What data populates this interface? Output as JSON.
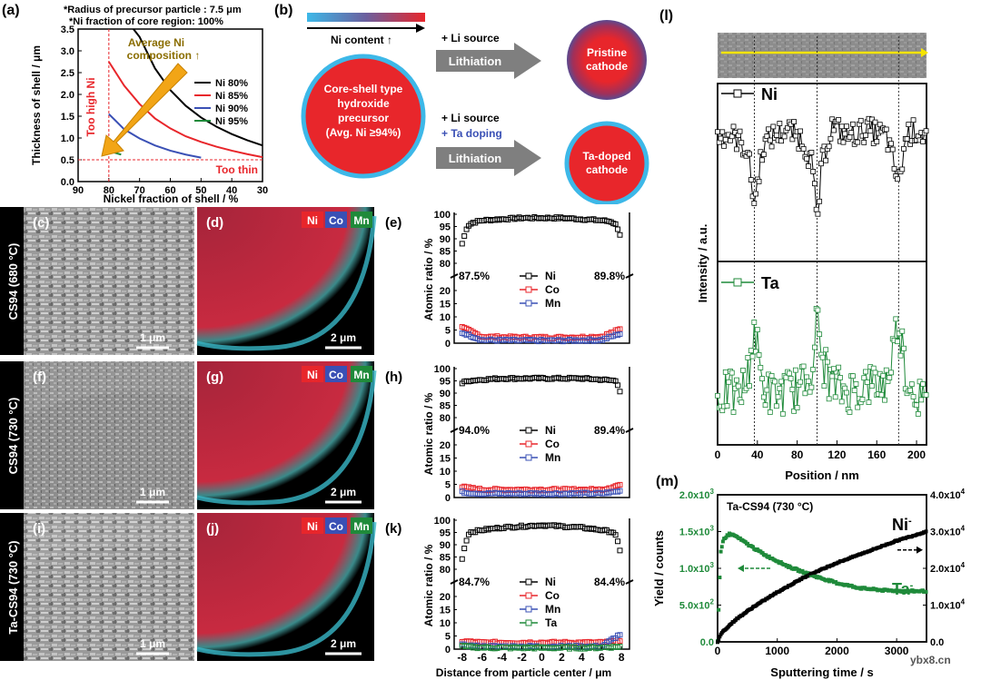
{
  "panel_labels": {
    "a": "(a)",
    "b": "(b)",
    "c": "(c)",
    "d": "(d)",
    "e": "(e)",
    "f": "(f)",
    "g": "(g)",
    "h": "(h)",
    "i": "(i)",
    "j": "(j)",
    "k": "(k)",
    "l": "(l)",
    "m": "(m)"
  },
  "colors": {
    "ni": "#000000",
    "co": "#e8262b",
    "mn": "#3a50b5",
    "ta": "#1f8a3a",
    "accent_red": "#e8262b",
    "blue_text": "#3a50b5",
    "arrow_gold": "#f2a516",
    "gray_arrow": "#7f7f7f",
    "cyan_ring": "#3db8e8"
  },
  "panel_a": {
    "note1": "*Radius of precursor particle : 7.5 μm",
    "note2": "*Ni fraction of core region: 100%",
    "too_high": "Too high Ni",
    "too_thin": "Too thin",
    "avg_line1": "Average Ni",
    "avg_line2": "composition ↑",
    "chart_data": {
      "type": "line",
      "xlabel": "Nickel fraction of shell / %",
      "ylabel": "Thickness of shell / μm",
      "xlim": [
        90,
        30
      ],
      "ylim": [
        0,
        3.5
      ],
      "xticks": [
        90,
        80,
        70,
        60,
        50,
        40,
        30
      ],
      "yticks": [
        0.0,
        0.5,
        1.0,
        1.5,
        2.0,
        2.5,
        3.0,
        3.5
      ],
      "series": [
        {
          "name": "Ni 80%",
          "x": [
            72,
            70,
            65,
            60,
            55,
            50,
            45,
            40,
            35,
            30
          ],
          "y": [
            3.6,
            3.32,
            2.6,
            2.1,
            1.74,
            1.47,
            1.26,
            1.09,
            0.95,
            0.83
          ]
        },
        {
          "name": "Ni 85%",
          "x": [
            80,
            75,
            70,
            65,
            60,
            55,
            50,
            45,
            40,
            35,
            30
          ],
          "y": [
            2.75,
            2.2,
            1.78,
            1.45,
            1.22,
            1.04,
            0.91,
            0.8,
            0.71,
            0.63,
            0.56
          ]
        },
        {
          "name": "Ni 90%",
          "x": [
            80,
            75,
            70,
            65,
            60,
            55,
            50
          ],
          "y": [
            1.55,
            1.2,
            0.99,
            0.83,
            0.71,
            0.62,
            0.55
          ]
        },
        {
          "name": "Ni 95%",
          "x": [
            80,
            78,
            76
          ],
          "y": [
            0.7,
            0.66,
            0.62
          ]
        }
      ],
      "threshold_x": 80,
      "threshold_y": 0.5
    }
  },
  "panel_b": {
    "ni_content": "Ni content ↑",
    "li_source": "+ Li source",
    "ta_doping": "+ Ta doping",
    "lithiation": "Lithiation",
    "precursor": [
      "Core-shell  type",
      "hydroxide",
      "precursor",
      "(Avg. Ni ≥94%)"
    ],
    "pristine": [
      "Pristine",
      "cathode"
    ],
    "ta_doped": [
      "Ta-doped",
      "cathode"
    ]
  },
  "rows": [
    {
      "label": "CS94 (680 °C)",
      "sem_scale": "1 μm",
      "eds_scale": "2 μm"
    },
    {
      "label": "CS94 (730 °C)",
      "sem_scale": "1 μm",
      "eds_scale": "2 μm"
    },
    {
      "label": "Ta-CS94 (730 °C)",
      "sem_scale": "1 μm",
      "eds_scale": "2 μm"
    }
  ],
  "eds_legend": {
    "ni": "Ni",
    "co": "Co",
    "mn": "Mn"
  },
  "profiles": {
    "ylabel": "Atomic ratio / %",
    "xlabel": "Distance from particle center / μm",
    "xticks": [
      -8,
      -6,
      -4,
      -2,
      0,
      2,
      4,
      6,
      8
    ],
    "yticks_upper": [
      80,
      85,
      90,
      95,
      100
    ],
    "yticks_lower": [
      0,
      5,
      10,
      15,
      20
    ],
    "chart_data": [
      {
        "type": "scatter",
        "panel": "e",
        "left_pct": "87.5%",
        "right_pct": "89.8%",
        "legend": [
          "Ni",
          "Co",
          "Mn"
        ],
        "ni": {
          "x": [
            -8,
            -7.5,
            -7,
            -6,
            -4,
            -2,
            0,
            2,
            4,
            6,
            7,
            7.5,
            8
          ],
          "y": [
            88,
            95,
            96.5,
            97.5,
            98,
            98.5,
            98.5,
            98.5,
            98,
            97.5,
            97,
            95.5,
            90
          ]
        },
        "co": {
          "x": [
            -8,
            -6,
            -4,
            -2,
            0,
            2,
            4,
            6,
            8
          ],
          "y": [
            6,
            2.5,
            2.3,
            2.2,
            2.2,
            2.2,
            2.3,
            2.5,
            5.5
          ]
        },
        "mn": {
          "x": [
            -8,
            -6,
            -4,
            -2,
            0,
            2,
            4,
            6,
            8
          ],
          "y": [
            4,
            1.2,
            1.1,
            1,
            1,
            1,
            1.1,
            1.2,
            3.8
          ]
        }
      },
      {
        "type": "scatter",
        "panel": "h",
        "left_pct": "94.0%",
        "right_pct": "89.4%",
        "legend": [
          "Ni",
          "Co",
          "Mn"
        ],
        "ni": {
          "x": [
            -8,
            -7.5,
            -6,
            -4,
            -2,
            0,
            2,
            4,
            6,
            7.5,
            8
          ],
          "y": [
            94,
            95,
            95.5,
            96,
            96,
            96,
            96,
            96,
            95.5,
            95,
            89
          ]
        },
        "co": {
          "x": [
            -8,
            -6,
            -4,
            -2,
            0,
            2,
            4,
            6,
            8
          ],
          "y": [
            4,
            3,
            3,
            3,
            3,
            3,
            3,
            3,
            5
          ]
        },
        "mn": {
          "x": [
            -8,
            -6,
            -4,
            -2,
            0,
            2,
            4,
            6,
            8
          ],
          "y": [
            2,
            1.5,
            1.5,
            1.5,
            1.5,
            1.5,
            1.5,
            1.5,
            2.5
          ]
        }
      },
      {
        "type": "scatter",
        "panel": "k",
        "left_pct": "84.7%",
        "right_pct": "84.4%",
        "legend": [
          "Ni",
          "Co",
          "Mn",
          "Ta"
        ],
        "ni": {
          "x": [
            -8,
            -7.7,
            -7.3,
            -6,
            -4,
            -2,
            0,
            2,
            4,
            6,
            7.3,
            7.7,
            8
          ],
          "y": [
            84.5,
            90,
            95,
            96,
            97,
            97.5,
            98,
            97.5,
            97,
            96,
            95,
            90,
            84.5
          ]
        },
        "co": {
          "x": [
            -8,
            -6,
            -4,
            -2,
            0,
            2,
            4,
            6,
            8
          ],
          "y": [
            3,
            2.5,
            2.5,
            2.5,
            2.5,
            2.5,
            2.5,
            2.5,
            3
          ]
        },
        "mn": {
          "x": [
            -8,
            -6,
            -4,
            -2,
            0,
            2,
            4,
            6,
            8
          ],
          "y": [
            1.5,
            1,
            1,
            1,
            1,
            1,
            1,
            1,
            6
          ]
        },
        "ta": {
          "x": [
            -8,
            -6,
            -4,
            -2,
            0,
            2,
            4,
            6,
            8
          ],
          "y": [
            1,
            0.6,
            0.5,
            0.5,
            0.5,
            0.5,
            0.5,
            0.6,
            1
          ]
        }
      }
    ]
  },
  "panel_l": {
    "ylabel": "Intensity / a.u.",
    "xlabel": "Position / nm",
    "ni_label": "Ni",
    "ta_label": "Ta",
    "xticks": [
      0,
      40,
      80,
      120,
      160,
      200
    ],
    "xlim": [
      0,
      210
    ],
    "dashed_x": [
      37,
      100,
      182
    ],
    "chart_data": {
      "type": "line",
      "series": [
        {
          "name": "Ni",
          "x": [
            0,
            10,
            20,
            30,
            37,
            45,
            55,
            70,
            85,
            95,
            100,
            105,
            115,
            130,
            150,
            170,
            182,
            190,
            200,
            210
          ],
          "y": [
            0.8,
            0.82,
            0.78,
            0.7,
            0.3,
            0.72,
            0.8,
            0.85,
            0.78,
            0.6,
            0.15,
            0.6,
            0.88,
            0.8,
            0.85,
            0.8,
            0.45,
            0.82,
            0.84,
            0.8
          ]
        },
        {
          "name": "Ta",
          "x": [
            0,
            10,
            20,
            30,
            37,
            45,
            55,
            70,
            85,
            95,
            100,
            105,
            115,
            130,
            150,
            170,
            182,
            190,
            200,
            210
          ],
          "y": [
            0.3,
            0.35,
            0.3,
            0.45,
            0.85,
            0.4,
            0.32,
            0.35,
            0.38,
            0.55,
            0.92,
            0.6,
            0.4,
            0.35,
            0.4,
            0.42,
            0.92,
            0.45,
            0.35,
            0.2
          ]
        }
      ]
    }
  },
  "panel_m": {
    "title": "Ta-CS94 (730 °C)",
    "ylabel": "Yield / counts",
    "xlabel": "Sputtering time / s",
    "ni_label": "Ni",
    "ta_label": "Ta",
    "sup": "-",
    "left_ticks": [
      "0.0",
      "5.0x10",
      "1.0x10",
      "1.5x10",
      "2.0x10"
    ],
    "left_exp": [
      "",
      "2",
      "3",
      "3",
      "3"
    ],
    "right_ticks": [
      "0.0",
      "1.0x10",
      "2.0x10",
      "3.0x10",
      "4.0x10"
    ],
    "right_exp": [
      "",
      "4",
      "4",
      "4",
      "4"
    ],
    "xticks": [
      0,
      1000,
      2000,
      3000
    ],
    "watermark": "ybx8.cn",
    "chart_data": {
      "type": "line",
      "xlim": [
        0,
        3500
      ],
      "left_ylim": [
        0,
        2000
      ],
      "right_ylim": [
        0,
        40000
      ],
      "series": [
        {
          "name": "Ta-",
          "axis": "left",
          "x": [
            0,
            50,
            100,
            200,
            300,
            500,
            800,
            1200,
            1600,
            2000,
            2400,
            2800,
            3200,
            3500
          ],
          "y": [
            0,
            1200,
            1400,
            1470,
            1440,
            1330,
            1180,
            1020,
            900,
            800,
            730,
            700,
            690,
            690
          ]
        },
        {
          "name": "Ni-",
          "axis": "right",
          "x": [
            0,
            50,
            100,
            300,
            600,
            1000,
            1500,
            2000,
            2500,
            3000,
            3500
          ],
          "y": [
            0,
            2000,
            3000,
            6000,
            9500,
            13500,
            18000,
            21500,
            24500,
            27500,
            30000
          ]
        }
      ]
    }
  }
}
